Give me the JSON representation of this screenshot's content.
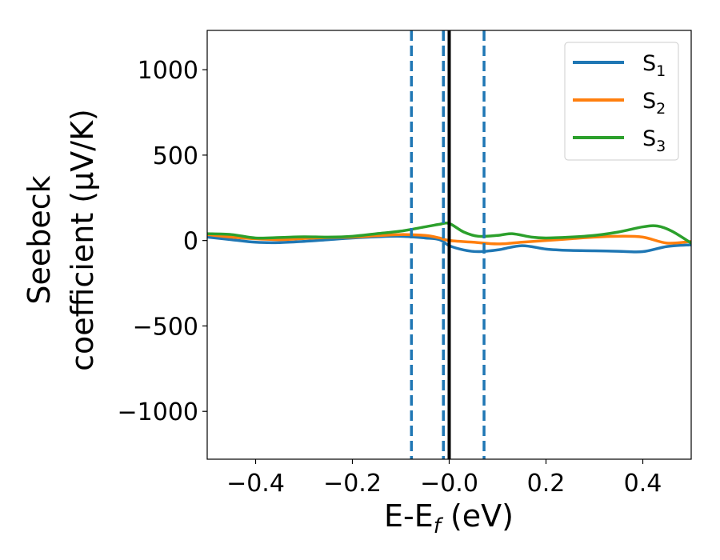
{
  "chart_data": {
    "type": "line",
    "xlabel": {
      "main": "E-E",
      "sub": "f",
      "unit": " (eV)"
    },
    "ylabel": {
      "line1": "Seebeck",
      "line2": "coefficient  (μV/K)"
    },
    "xlim": [
      -0.5,
      0.5
    ],
    "ylim": [
      -1280,
      1230
    ],
    "xticks": [
      -0.4,
      -0.2,
      0.0,
      0.2,
      0.4
    ],
    "xtick_labels": [
      "−0.4",
      "−0.2",
      "−0.0",
      "0.2",
      "0.4"
    ],
    "yticks": [
      -1000,
      -500,
      0,
      500,
      1000
    ],
    "ytick_labels": [
      "−1000",
      "−500",
      "0",
      "500",
      "1000"
    ],
    "grid": false,
    "legend_placement": "top-right",
    "series": [
      {
        "name": "S",
        "sub": "1",
        "color": "#1f77b4",
        "x": [
          -0.5,
          -0.45,
          -0.4,
          -0.35,
          -0.3,
          -0.25,
          -0.2,
          -0.15,
          -0.1,
          -0.05,
          -0.02,
          0.0,
          0.03,
          0.06,
          0.1,
          0.15,
          0.2,
          0.25,
          0.3,
          0.35,
          0.4,
          0.45,
          0.5
        ],
        "values": [
          20,
          5,
          -10,
          -12,
          -5,
          5,
          15,
          22,
          25,
          15,
          5,
          -30,
          -55,
          -65,
          -55,
          -30,
          -50,
          -58,
          -60,
          -63,
          -65,
          -35,
          -25
        ]
      },
      {
        "name": "S",
        "sub": "2",
        "color": "#ff7f0e",
        "x": [
          -0.5,
          -0.45,
          -0.4,
          -0.35,
          -0.3,
          -0.25,
          -0.2,
          -0.15,
          -0.1,
          -0.05,
          -0.02,
          0.0,
          0.05,
          0.1,
          0.15,
          0.2,
          0.25,
          0.3,
          0.35,
          0.4,
          0.45,
          0.5
        ],
        "values": [
          35,
          20,
          10,
          5,
          12,
          18,
          20,
          28,
          35,
          30,
          15,
          0,
          -10,
          -20,
          -10,
          0,
          10,
          20,
          25,
          20,
          -15,
          -5
        ]
      },
      {
        "name": "S",
        "sub": "3",
        "color": "#2ca02c",
        "x": [
          -0.5,
          -0.45,
          -0.4,
          -0.35,
          -0.3,
          -0.25,
          -0.2,
          -0.15,
          -0.1,
          -0.05,
          -0.02,
          0.0,
          0.03,
          0.06,
          0.1,
          0.13,
          0.17,
          0.2,
          0.25,
          0.3,
          0.35,
          0.4,
          0.43,
          0.46,
          0.5
        ],
        "values": [
          40,
          35,
          15,
          18,
          22,
          20,
          25,
          40,
          55,
          80,
          95,
          100,
          50,
          25,
          30,
          40,
          20,
          15,
          20,
          30,
          50,
          80,
          85,
          55,
          -15
        ]
      }
    ],
    "vlines": [
      {
        "x": -0.078,
        "style": "dashed",
        "color": "#1f77b4"
      },
      {
        "x": -0.012,
        "style": "dashed",
        "color": "#1f77b4"
      },
      {
        "x": 0.0,
        "style": "solid",
        "color": "#000000"
      },
      {
        "x": 0.072,
        "style": "dashed",
        "color": "#1f77b4"
      }
    ]
  }
}
